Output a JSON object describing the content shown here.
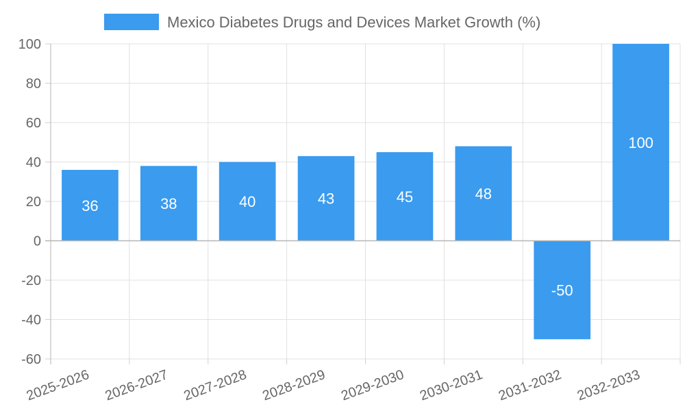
{
  "chart_data": {
    "type": "bar",
    "title": "",
    "xlabel": "",
    "ylabel": "",
    "categories": [
      "2025-2026",
      "2026-2027",
      "2027-2028",
      "2028-2029",
      "2029-2030",
      "2030-2031",
      "2031-2032",
      "2032-2033"
    ],
    "series": [
      {
        "name": "Mexico Diabetes Drugs and Devices Market Growth (%)",
        "values": [
          36,
          38,
          40,
          43,
          45,
          48,
          -50,
          100
        ],
        "color": "#3a9bef"
      }
    ],
    "ylim": [
      -60,
      100
    ],
    "yticks": [
      100,
      80,
      60,
      40,
      20,
      0,
      -20,
      -40,
      -60
    ],
    "grid": true,
    "legend_position": "top-center",
    "data_labels": true,
    "data_label_color": "#ffffff",
    "x_tick_rotation": -20
  }
}
